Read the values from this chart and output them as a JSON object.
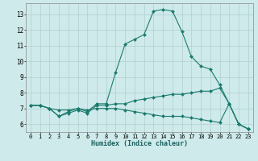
{
  "xlabel": "Humidex (Indice chaleur)",
  "bg_color": "#ceeaea",
  "grid_color": "#b0cfcf",
  "line_color": "#1a7a6e",
  "x_ticks": [
    0,
    1,
    2,
    3,
    4,
    5,
    6,
    7,
    8,
    9,
    10,
    11,
    12,
    13,
    14,
    15,
    16,
    17,
    18,
    19,
    20,
    21,
    22,
    23
  ],
  "y_ticks": [
    6,
    7,
    8,
    9,
    10,
    11,
    12,
    13
  ],
  "ylim": [
    5.5,
    13.7
  ],
  "xlim": [
    -0.5,
    23.5
  ],
  "series": [
    {
      "x": [
        0,
        1,
        2,
        3,
        4,
        5,
        6,
        7,
        8,
        9,
        10,
        11,
        12,
        13,
        14,
        15,
        16,
        17,
        18,
        19,
        20,
        21,
        22,
        23
      ],
      "y": [
        7.2,
        7.2,
        7.0,
        6.5,
        6.8,
        7.0,
        6.8,
        7.3,
        7.3,
        9.3,
        11.1,
        11.4,
        11.7,
        13.2,
        13.3,
        13.2,
        11.9,
        10.3,
        9.7,
        9.5,
        8.5,
        7.3,
        6.0,
        5.7
      ]
    },
    {
      "x": [
        0,
        1,
        2,
        3,
        4,
        5,
        6,
        7,
        8,
        9,
        10,
        11,
        12,
        13,
        14,
        15,
        16,
        17,
        18,
        19,
        20,
        21,
        22,
        23
      ],
      "y": [
        7.2,
        7.2,
        7.0,
        6.5,
        6.7,
        6.9,
        6.7,
        7.2,
        7.2,
        7.3,
        7.3,
        7.5,
        7.6,
        7.7,
        7.8,
        7.9,
        7.9,
        8.0,
        8.1,
        8.1,
        8.3,
        7.3,
        6.0,
        5.7
      ]
    },
    {
      "x": [
        0,
        1,
        2,
        3,
        4,
        5,
        6,
        7,
        8,
        9,
        10,
        11,
        12,
        13,
        14,
        15,
        16,
        17,
        18,
        19,
        20,
        21,
        22,
        23
      ],
      "y": [
        7.2,
        7.2,
        7.0,
        6.9,
        6.9,
        7.0,
        6.9,
        7.0,
        7.0,
        7.0,
        6.9,
        6.8,
        6.7,
        6.6,
        6.5,
        6.5,
        6.5,
        6.4,
        6.3,
        6.2,
        6.1,
        7.3,
        6.0,
        5.7
      ]
    }
  ]
}
